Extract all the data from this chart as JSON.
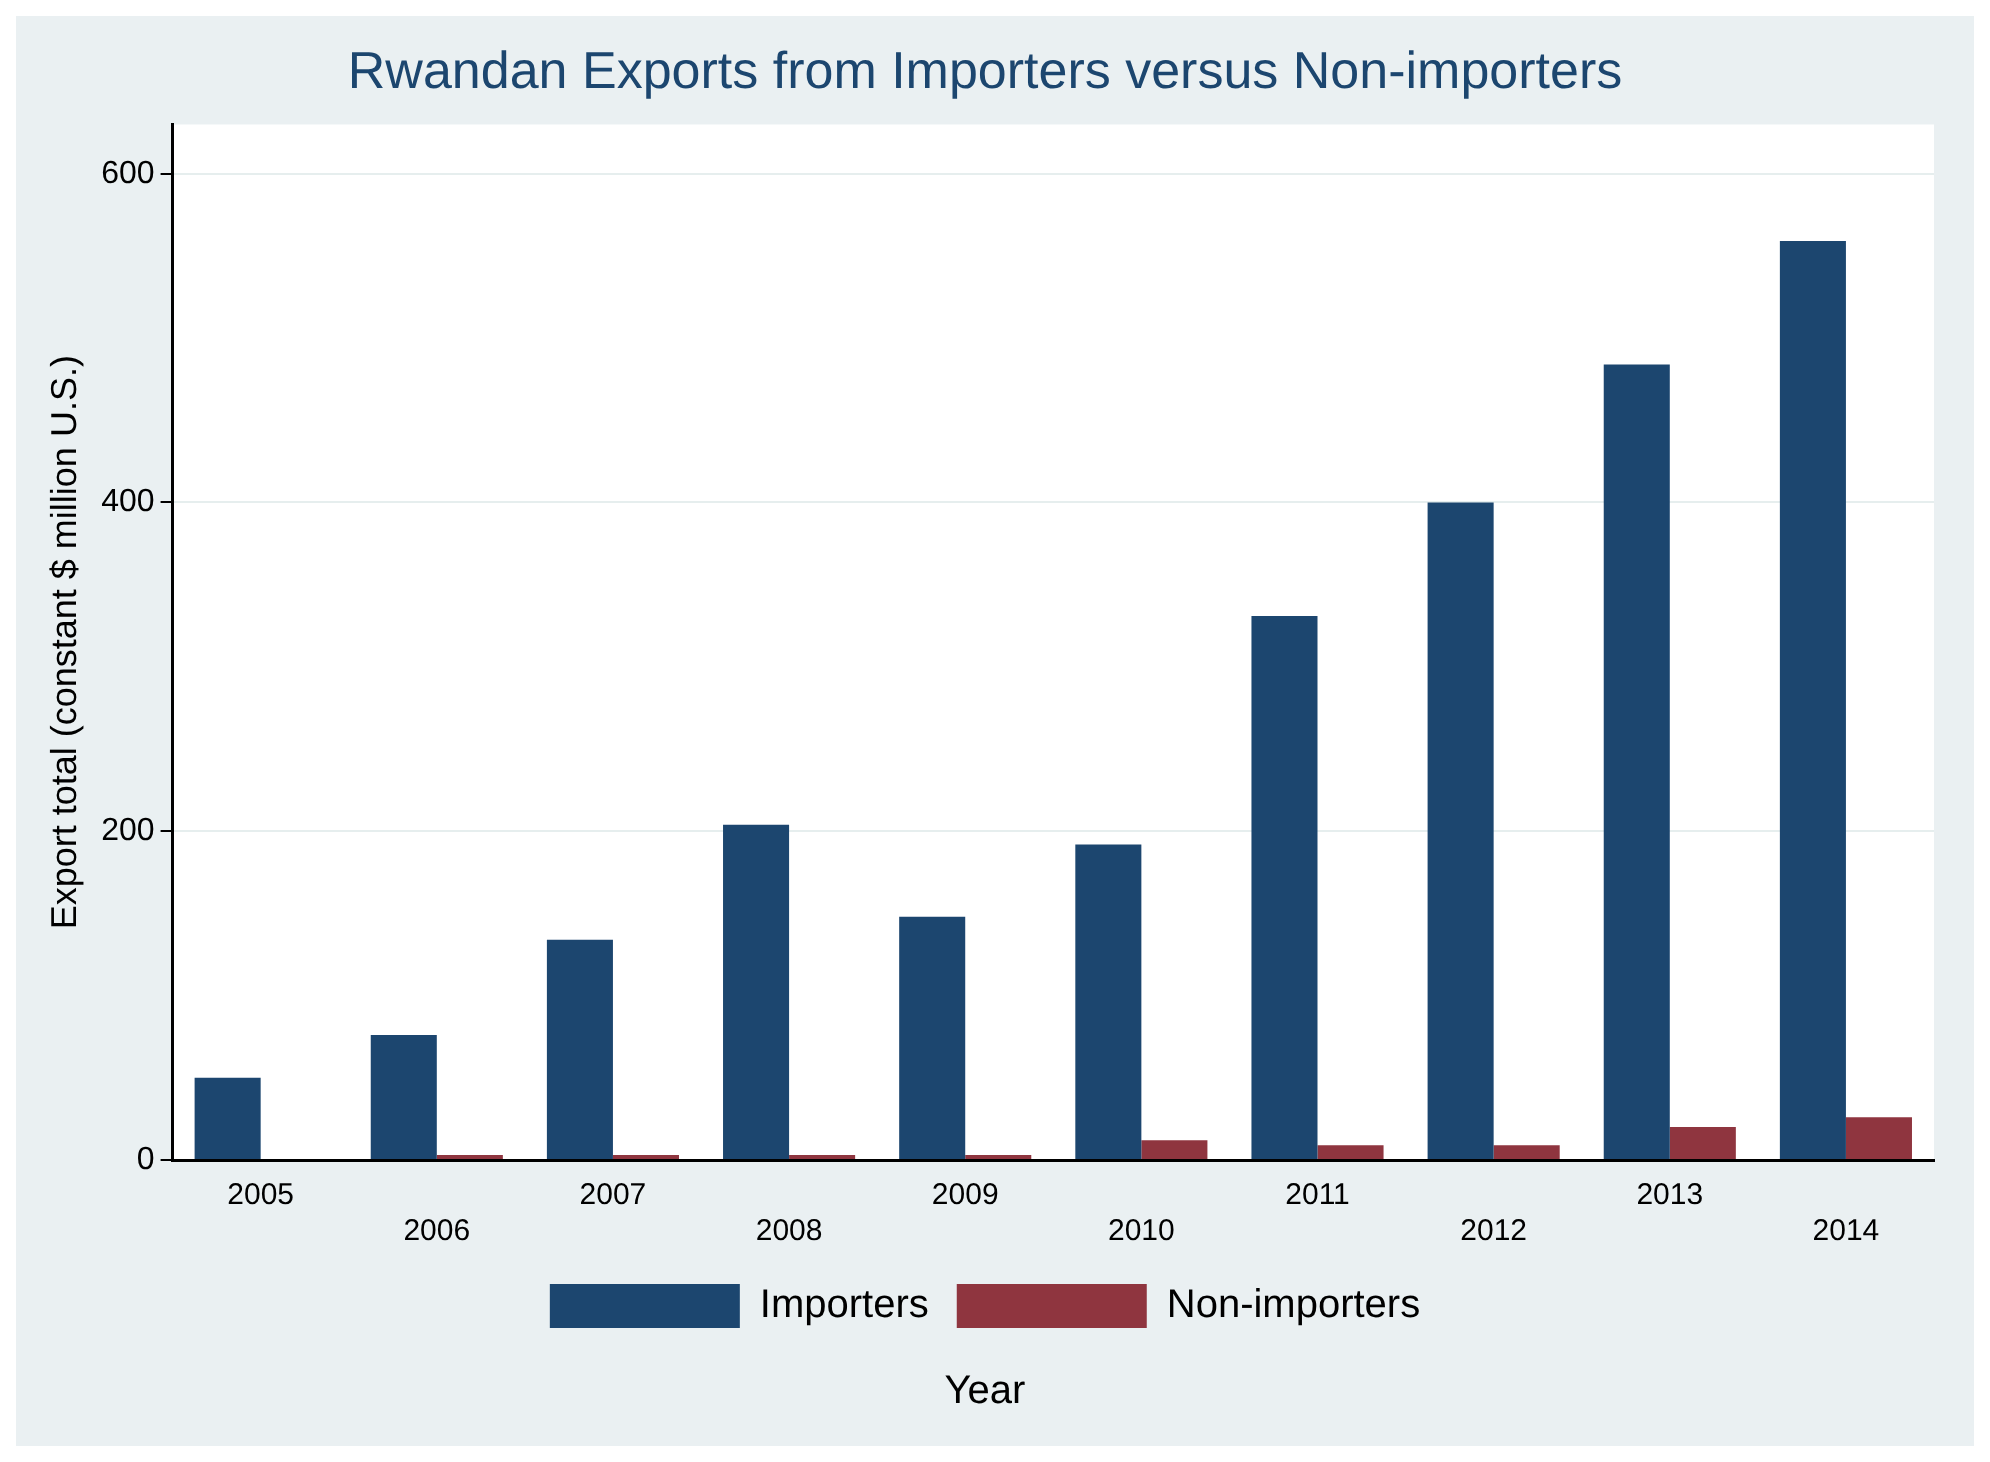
{
  "chart_data": {
    "type": "bar",
    "title": "Rwandan Exports from Importers versus Non-importers",
    "xlabel": "Year",
    "ylabel": "Export total (constant $ million U.S.)",
    "categories": [
      "2005",
      "2006",
      "2007",
      "2008",
      "2009",
      "2010",
      "2011",
      "2012",
      "2013",
      "2014"
    ],
    "series": [
      {
        "name": "Importers",
        "color": "#1c466f",
        "values": [
          50,
          76,
          134,
          204,
          148,
          192,
          331,
          400,
          484,
          559
        ]
      },
      {
        "name": "Non-importers",
        "color": "#8f353f",
        "values": [
          0,
          3,
          3,
          3,
          3,
          12,
          9,
          9,
          20,
          26
        ]
      }
    ],
    "ylim": [
      0,
      630
    ],
    "yticks": [
      0,
      200,
      400,
      600
    ],
    "grid": "y",
    "legend": "bottom"
  }
}
